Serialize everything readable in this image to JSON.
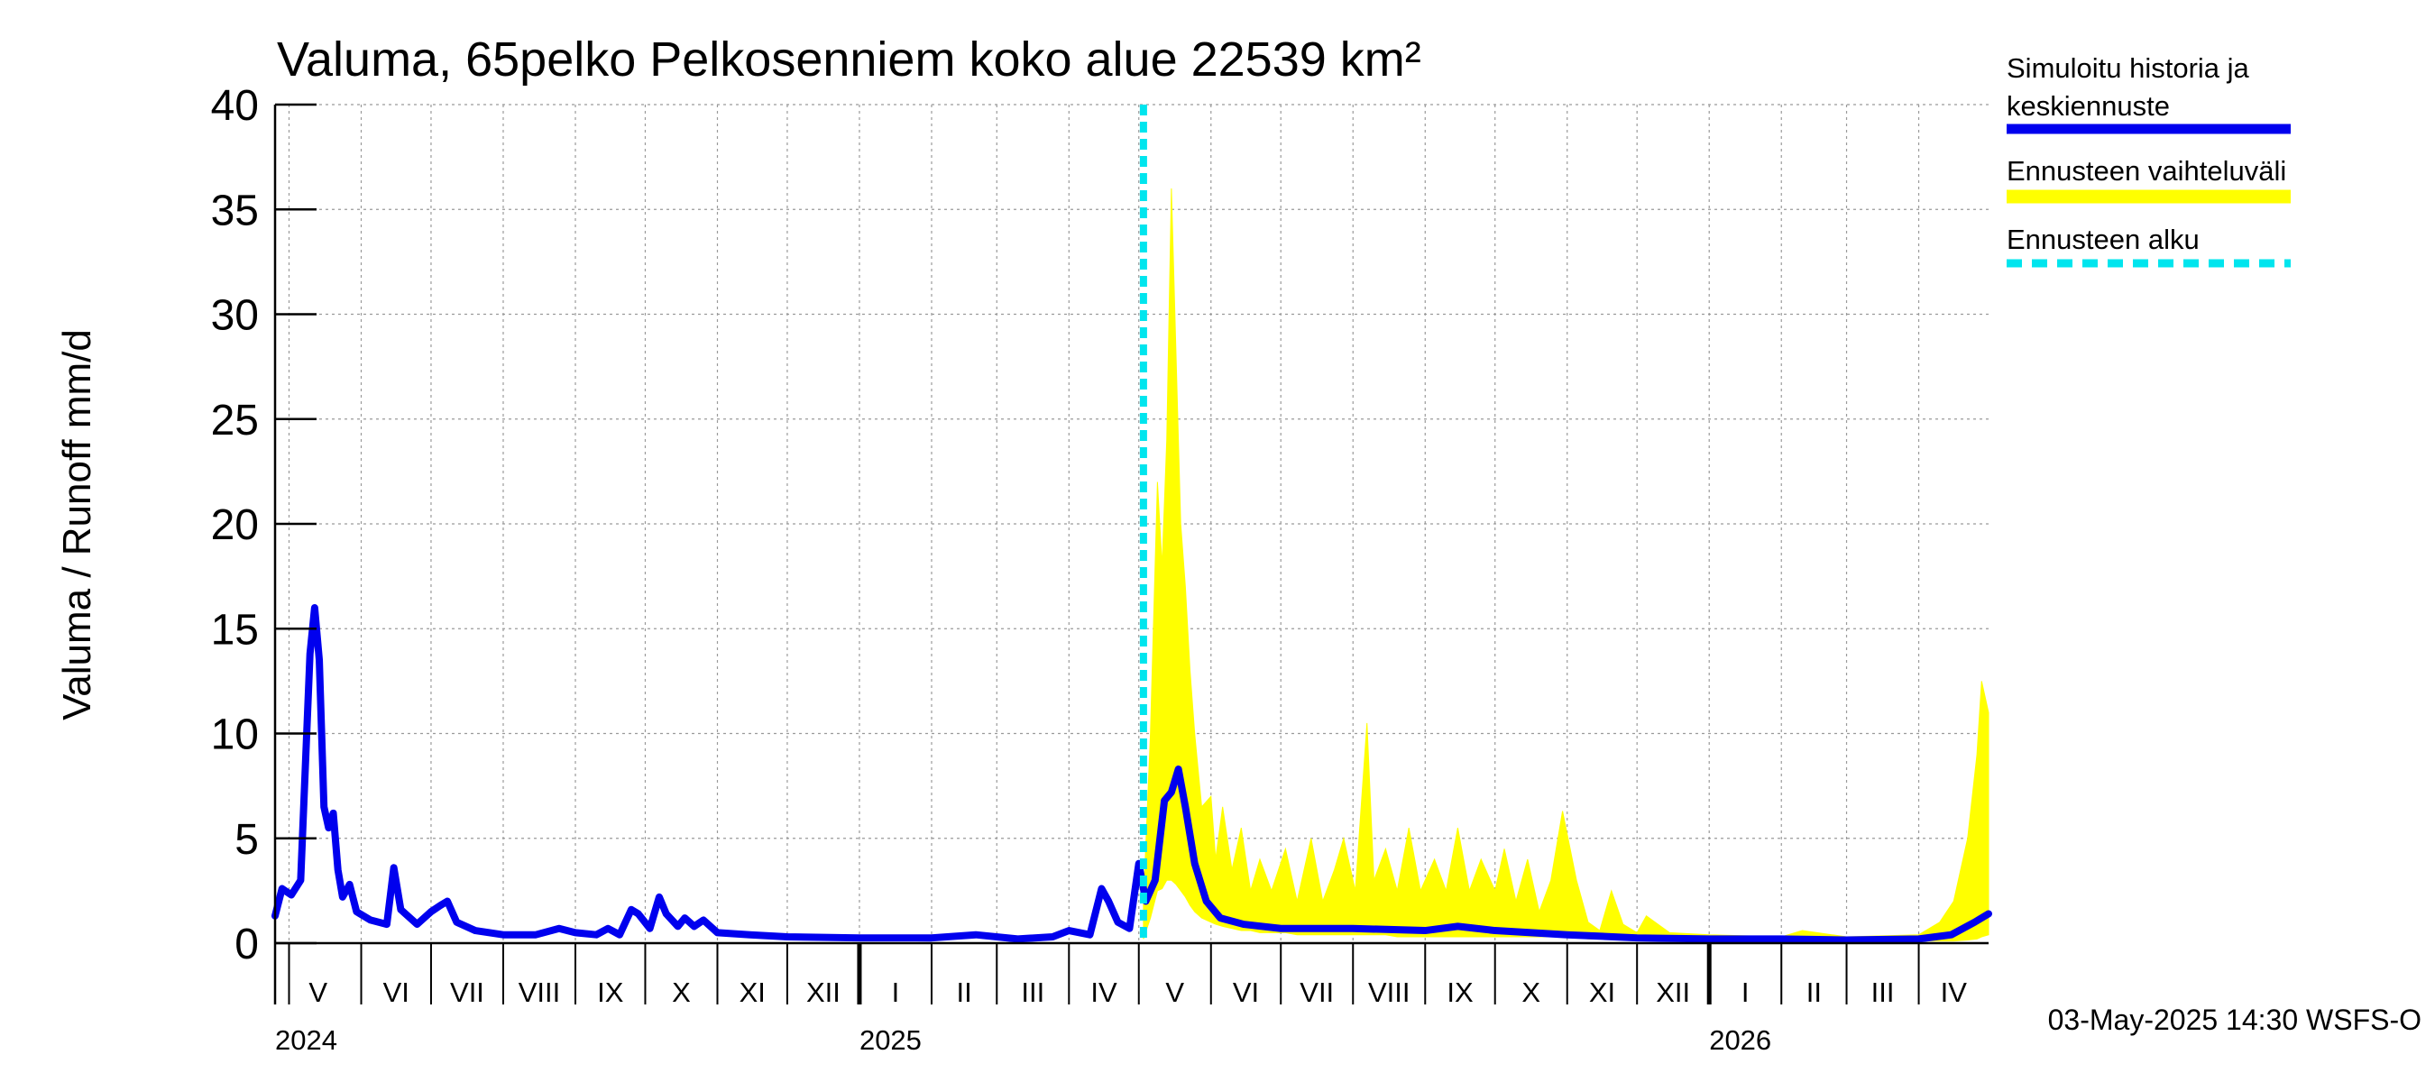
{
  "chart_data": {
    "type": "line",
    "title": "Valuma, 65pelko Pelkosenniem koko alue 22539 km²",
    "ylabel": "Valuma / Runoff    mm/d",
    "ylim": [
      0,
      40
    ],
    "yticks": [
      0,
      5,
      10,
      15,
      20,
      25,
      30,
      35,
      40
    ],
    "xlim": [
      "2024-04-25",
      "2026-05-01"
    ],
    "month_labels": [
      {
        "label": "V",
        "date": "2024-05-01"
      },
      {
        "label": "VI",
        "date": "2024-06-01"
      },
      {
        "label": "VII",
        "date": "2024-07-01"
      },
      {
        "label": "VIII",
        "date": "2024-08-01"
      },
      {
        "label": "IX",
        "date": "2024-09-01"
      },
      {
        "label": "X",
        "date": "2024-10-01"
      },
      {
        "label": "XI",
        "date": "2024-11-01"
      },
      {
        "label": "XII",
        "date": "2024-12-01"
      },
      {
        "label": "I",
        "date": "2025-01-01"
      },
      {
        "label": "II",
        "date": "2025-02-01"
      },
      {
        "label": "III",
        "date": "2025-03-01"
      },
      {
        "label": "IV",
        "date": "2025-04-01"
      },
      {
        "label": "V",
        "date": "2025-05-01"
      },
      {
        "label": "VI",
        "date": "2025-06-01"
      },
      {
        "label": "VII",
        "date": "2025-07-01"
      },
      {
        "label": "VIII",
        "date": "2025-08-01"
      },
      {
        "label": "IX",
        "date": "2025-09-01"
      },
      {
        "label": "X",
        "date": "2025-10-01"
      },
      {
        "label": "XI",
        "date": "2025-11-01"
      },
      {
        "label": "XII",
        "date": "2025-12-01"
      },
      {
        "label": "I",
        "date": "2026-01-01"
      },
      {
        "label": "II",
        "date": "2026-02-01"
      },
      {
        "label": "III",
        "date": "2026-03-01"
      },
      {
        "label": "IV",
        "date": "2026-04-01"
      }
    ],
    "year_labels": [
      {
        "label": "2024",
        "date": "2024-04-25"
      },
      {
        "label": "2025",
        "date": "2025-01-01"
      },
      {
        "label": "2026",
        "date": "2026-01-01"
      }
    ],
    "forecast_start": "2025-05-03",
    "grid": true,
    "legend_placement": "right",
    "colors": {
      "history": "#0000ee",
      "range": "#ffff00",
      "forecast_start": "#00e5ee"
    },
    "series": [
      {
        "name": "Simuloitu historia ja keskiennuste",
        "points": [
          [
            "2024-04-25",
            1.3
          ],
          [
            "2024-04-28",
            2.6
          ],
          [
            "2024-05-02",
            2.3
          ],
          [
            "2024-05-06",
            3.0
          ],
          [
            "2024-05-10",
            13.8
          ],
          [
            "2024-05-12",
            16.0
          ],
          [
            "2024-05-14",
            13.5
          ],
          [
            "2024-05-16",
            6.5
          ],
          [
            "2024-05-18",
            5.5
          ],
          [
            "2024-05-20",
            6.2
          ],
          [
            "2024-05-22",
            3.5
          ],
          [
            "2024-05-24",
            2.2
          ],
          [
            "2024-05-27",
            2.8
          ],
          [
            "2024-05-30",
            1.5
          ],
          [
            "2024-06-05",
            1.1
          ],
          [
            "2024-06-12",
            0.9
          ],
          [
            "2024-06-15",
            3.6
          ],
          [
            "2024-06-18",
            1.6
          ],
          [
            "2024-06-25",
            0.9
          ],
          [
            "2024-07-01",
            1.5
          ],
          [
            "2024-07-05",
            1.8
          ],
          [
            "2024-07-08",
            2.0
          ],
          [
            "2024-07-12",
            1.0
          ],
          [
            "2024-07-20",
            0.6
          ],
          [
            "2024-08-01",
            0.4
          ],
          [
            "2024-08-15",
            0.4
          ],
          [
            "2024-08-25",
            0.7
          ],
          [
            "2024-09-01",
            0.5
          ],
          [
            "2024-09-10",
            0.4
          ],
          [
            "2024-09-15",
            0.7
          ],
          [
            "2024-09-20",
            0.4
          ],
          [
            "2024-09-25",
            1.6
          ],
          [
            "2024-09-28",
            1.4
          ],
          [
            "2024-10-03",
            0.7
          ],
          [
            "2024-10-07",
            2.2
          ],
          [
            "2024-10-10",
            1.4
          ],
          [
            "2024-10-15",
            0.8
          ],
          [
            "2024-10-18",
            1.2
          ],
          [
            "2024-10-22",
            0.8
          ],
          [
            "2024-10-26",
            1.1
          ],
          [
            "2024-11-01",
            0.5
          ],
          [
            "2024-11-15",
            0.4
          ],
          [
            "2024-12-01",
            0.3
          ],
          [
            "2025-01-01",
            0.25
          ],
          [
            "2025-02-01",
            0.25
          ],
          [
            "2025-02-20",
            0.4
          ],
          [
            "2025-03-10",
            0.2
          ],
          [
            "2025-03-25",
            0.3
          ],
          [
            "2025-04-01",
            0.6
          ],
          [
            "2025-04-10",
            0.4
          ],
          [
            "2025-04-15",
            2.6
          ],
          [
            "2025-04-18",
            2.0
          ],
          [
            "2025-04-22",
            1.0
          ],
          [
            "2025-04-27",
            0.7
          ],
          [
            "2025-05-01",
            3.8
          ],
          [
            "2025-05-04",
            2.0
          ],
          [
            "2025-05-08",
            3.0
          ],
          [
            "2025-05-12",
            6.8
          ],
          [
            "2025-05-15",
            7.2
          ],
          [
            "2025-05-18",
            8.3
          ],
          [
            "2025-05-21",
            6.5
          ],
          [
            "2025-05-25",
            3.8
          ],
          [
            "2025-05-30",
            2.0
          ],
          [
            "2025-06-05",
            1.2
          ],
          [
            "2025-06-15",
            0.9
          ],
          [
            "2025-07-01",
            0.7
          ],
          [
            "2025-08-01",
            0.7
          ],
          [
            "2025-09-01",
            0.6
          ],
          [
            "2025-09-15",
            0.8
          ],
          [
            "2025-10-01",
            0.6
          ],
          [
            "2025-11-01",
            0.4
          ],
          [
            "2025-12-01",
            0.25
          ],
          [
            "2026-01-01",
            0.2
          ],
          [
            "2026-02-01",
            0.2
          ],
          [
            "2026-03-01",
            0.15
          ],
          [
            "2026-04-01",
            0.2
          ],
          [
            "2026-04-15",
            0.4
          ],
          [
            "2026-04-25",
            1.0
          ],
          [
            "2026-05-01",
            1.4
          ]
        ]
      },
      {
        "name": "Ennusteen vaihteluväli",
        "band": [
          [
            "2025-05-03",
            0.2,
            2.0
          ],
          [
            "2025-05-06",
            1.2,
            10.0
          ],
          [
            "2025-05-09",
            2.5,
            22.0
          ],
          [
            "2025-05-11",
            2.6,
            18.0
          ],
          [
            "2025-05-13",
            3.0,
            24.0
          ],
          [
            "2025-05-15",
            3.0,
            36.0
          ],
          [
            "2025-05-17",
            2.8,
            28.0
          ],
          [
            "2025-05-19",
            2.5,
            20.0
          ],
          [
            "2025-05-21",
            2.2,
            17.0
          ],
          [
            "2025-05-23",
            1.8,
            13.0
          ],
          [
            "2025-05-25",
            1.5,
            10.0
          ],
          [
            "2025-05-28",
            1.2,
            6.5
          ],
          [
            "2025-06-01",
            1.0,
            7.0
          ],
          [
            "2025-06-03",
            0.9,
            4.0
          ],
          [
            "2025-06-06",
            0.8,
            6.5
          ],
          [
            "2025-06-10",
            0.7,
            3.5
          ],
          [
            "2025-06-14",
            0.6,
            5.5
          ],
          [
            "2025-06-18",
            0.6,
            2.5
          ],
          [
            "2025-06-22",
            0.5,
            4.0
          ],
          [
            "2025-06-27",
            0.5,
            2.5
          ],
          [
            "2025-07-03",
            0.5,
            4.5
          ],
          [
            "2025-07-08",
            0.4,
            2.0
          ],
          [
            "2025-07-14",
            0.4,
            5.0
          ],
          [
            "2025-07-19",
            0.4,
            2.0
          ],
          [
            "2025-07-24",
            0.4,
            3.5
          ],
          [
            "2025-07-28",
            0.4,
            5.0
          ],
          [
            "2025-08-02",
            0.4,
            2.5
          ],
          [
            "2025-08-07",
            0.4,
            10.5
          ],
          [
            "2025-08-10",
            0.4,
            3.0
          ],
          [
            "2025-08-15",
            0.4,
            4.5
          ],
          [
            "2025-08-20",
            0.3,
            2.5
          ],
          [
            "2025-08-25",
            0.3,
            5.5
          ],
          [
            "2025-08-30",
            0.3,
            2.5
          ],
          [
            "2025-09-05",
            0.3,
            4.0
          ],
          [
            "2025-09-10",
            0.3,
            2.5
          ],
          [
            "2025-09-15",
            0.3,
            5.5
          ],
          [
            "2025-09-20",
            0.3,
            2.5
          ],
          [
            "2025-09-25",
            0.3,
            4.0
          ],
          [
            "2025-10-01",
            0.3,
            2.5
          ],
          [
            "2025-10-05",
            0.3,
            4.5
          ],
          [
            "2025-10-10",
            0.3,
            2.0
          ],
          [
            "2025-10-15",
            0.3,
            4.0
          ],
          [
            "2025-10-20",
            0.3,
            1.5
          ],
          [
            "2025-10-25",
            0.3,
            3.0
          ],
          [
            "2025-10-30",
            0.3,
            6.3
          ],
          [
            "2025-11-05",
            0.3,
            3.0
          ],
          [
            "2025-11-10",
            0.2,
            1.0
          ],
          [
            "2025-11-15",
            0.2,
            0.6
          ],
          [
            "2025-11-20",
            0.2,
            2.5
          ],
          [
            "2025-11-25",
            0.2,
            0.9
          ],
          [
            "2025-12-01",
            0.2,
            0.5
          ],
          [
            "2025-12-05",
            0.2,
            1.3
          ],
          [
            "2025-12-15",
            0.15,
            0.5
          ],
          [
            "2026-01-01",
            0.15,
            0.4
          ],
          [
            "2026-02-01",
            0.1,
            0.3
          ],
          [
            "2026-02-10",
            0.1,
            0.6
          ],
          [
            "2026-03-01",
            0.1,
            0.3
          ],
          [
            "2026-04-01",
            0.1,
            0.4
          ],
          [
            "2026-04-10",
            0.1,
            1.0
          ],
          [
            "2026-04-16",
            0.1,
            2.0
          ],
          [
            "2026-04-22",
            0.15,
            5.0
          ],
          [
            "2026-04-26",
            0.2,
            9.0
          ],
          [
            "2026-04-28",
            0.3,
            12.5
          ],
          [
            "2026-05-01",
            0.4,
            11.0
          ]
        ]
      }
    ]
  },
  "legend": [
    {
      "label_line1": "Simuloitu historia ja",
      "label_line2": "keskiennuste"
    },
    {
      "label_line1": "Ennusteen vaihteluväli",
      "label_line2": ""
    },
    {
      "label_line1": "Ennusteen alku",
      "label_line2": ""
    }
  ],
  "footer": "03-May-2025 14:30 WSFS-O"
}
